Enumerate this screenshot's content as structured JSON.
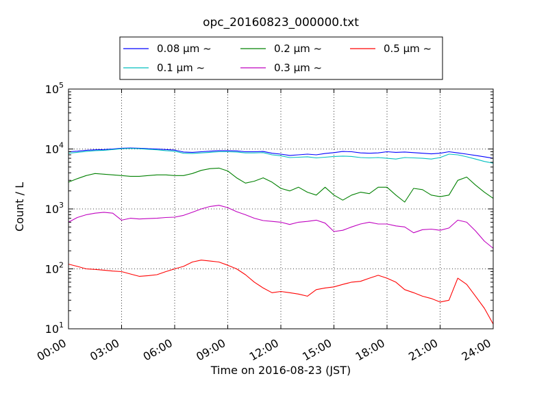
{
  "chart_data": {
    "type": "line",
    "title": "opc_20160823_000000.txt",
    "xlabel": "Time on 2016-08-23 (JST)",
    "ylabel": "Count / L",
    "yscale": "log",
    "ylim": [
      10,
      100000
    ],
    "xlim": [
      "00:00",
      "24:00"
    ],
    "x_ticks": [
      "00:00",
      "03:00",
      "06:00",
      "09:00",
      "12:00",
      "15:00",
      "18:00",
      "21:00",
      "24:00"
    ],
    "x_tick_hours": [
      0,
      3,
      6,
      9,
      12,
      15,
      18,
      21,
      24
    ],
    "y_ticks": [
      {
        "value": 10,
        "base": "10",
        "exp": "1"
      },
      {
        "value": 100,
        "base": "10",
        "exp": "2"
      },
      {
        "value": 1000,
        "base": "10",
        "exp": "3"
      },
      {
        "value": 10000,
        "base": "10",
        "exp": "4"
      },
      {
        "value": 100000,
        "base": "10",
        "exp": "5"
      }
    ],
    "grid": true,
    "legend_position": "top",
    "x_hours": [
      0,
      0.5,
      1,
      1.5,
      2,
      2.5,
      3,
      3.5,
      4,
      4.5,
      5,
      5.5,
      6,
      6.5,
      7,
      7.5,
      8,
      8.5,
      9,
      9.5,
      10,
      10.5,
      11,
      11.5,
      12,
      12.5,
      13,
      13.5,
      14,
      14.5,
      15,
      15.5,
      16,
      16.5,
      17,
      17.5,
      18,
      18.5,
      19,
      19.5,
      20,
      20.5,
      21,
      21.5,
      22,
      22.5,
      23,
      23.5,
      24
    ],
    "series": [
      {
        "name": "0.08 μm ~",
        "color": "#0000ff",
        "values": [
          9000,
          9200,
          9500,
          9700,
          9800,
          10000,
          10300,
          10400,
          10300,
          10100,
          10000,
          9800,
          9600,
          8900,
          8800,
          9000,
          9200,
          9400,
          9400,
          9300,
          9000,
          9000,
          9100,
          8500,
          8200,
          7800,
          8000,
          8200,
          8000,
          8400,
          8700,
          9100,
          9000,
          8600,
          8500,
          8600,
          9000,
          8800,
          8900,
          8700,
          8500,
          8300,
          8500,
          9000,
          8600,
          8200,
          7800,
          7400,
          7000
        ]
      },
      {
        "name": "0.1 μm ~",
        "color": "#00bfbf",
        "values": [
          8500,
          8800,
          9100,
          9400,
          9500,
          9800,
          10100,
          10200,
          10100,
          9900,
          9700,
          9400,
          9200,
          8500,
          8400,
          8600,
          8800,
          9000,
          9000,
          8900,
          8600,
          8600,
          8700,
          8000,
          7700,
          7200,
          7300,
          7400,
          7100,
          7300,
          7500,
          7600,
          7500,
          7200,
          7100,
          7200,
          7000,
          6800,
          7200,
          7100,
          7000,
          6800,
          7200,
          8200,
          8000,
          7400,
          6800,
          6200,
          5800
        ]
      },
      {
        "name": "0.2 μm ~",
        "color": "#008000",
        "values": [
          2800,
          3200,
          3600,
          3900,
          3800,
          3700,
          3600,
          3500,
          3500,
          3600,
          3700,
          3700,
          3600,
          3600,
          3900,
          4400,
          4700,
          4800,
          4300,
          3300,
          2700,
          2900,
          3300,
          2800,
          2200,
          2000,
          2300,
          1900,
          1700,
          2300,
          1700,
          1400,
          1700,
          1900,
          1800,
          2300,
          2300,
          1700,
          1300,
          2200,
          2100,
          1700,
          1600,
          1700,
          3000,
          3400,
          2500,
          1900,
          1500
        ]
      },
      {
        "name": "0.3 μm ~",
        "color": "#bf00bf",
        "values": [
          600,
          720,
          800,
          850,
          880,
          850,
          650,
          700,
          680,
          690,
          700,
          720,
          730,
          780,
          880,
          1000,
          1100,
          1150,
          1050,
          900,
          800,
          700,
          640,
          620,
          600,
          550,
          600,
          620,
          650,
          580,
          420,
          440,
          500,
          560,
          600,
          560,
          560,
          520,
          500,
          400,
          450,
          460,
          440,
          480,
          650,
          600,
          430,
          290,
          220
        ]
      },
      {
        "name": "0.5 μm ~",
        "color": "#ff0000",
        "values": [
          120,
          110,
          100,
          98,
          95,
          92,
          90,
          82,
          75,
          77,
          80,
          90,
          100,
          110,
          130,
          140,
          135,
          130,
          115,
          100,
          80,
          60,
          48,
          40,
          42,
          40,
          38,
          35,
          45,
          48,
          50,
          55,
          60,
          62,
          70,
          78,
          70,
          60,
          45,
          40,
          35,
          32,
          28,
          30,
          70,
          55,
          35,
          22,
          12
        ]
      }
    ]
  }
}
